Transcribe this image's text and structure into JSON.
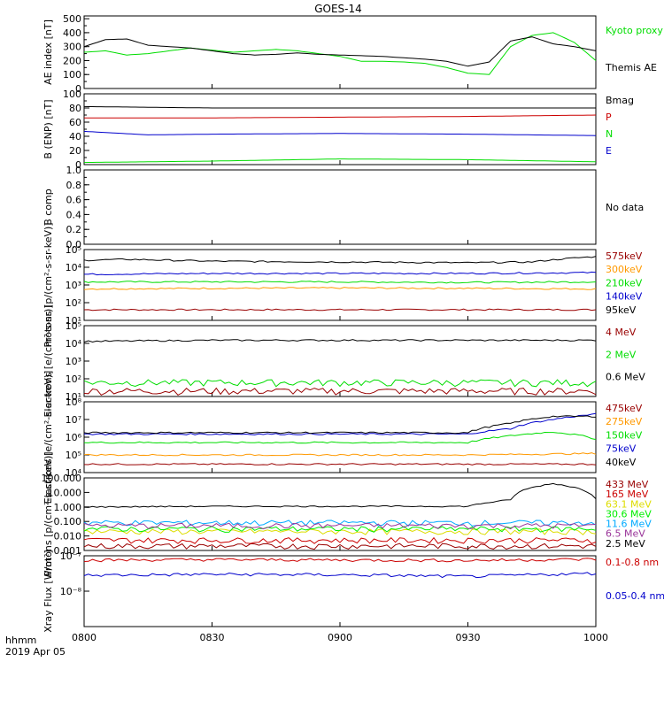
{
  "title": "GOES-14",
  "time_label": "hhmm",
  "date_label": "2019 Apr 05",
  "colors": {
    "black": "#000000",
    "green": "#00dd00",
    "red": "#cc0000",
    "blue": "#0000cc",
    "orange": "#ff9900",
    "darkred": "#990000",
    "yellow": "#dddd00",
    "cyan": "#00aaff",
    "purple": "#993399",
    "brightgreen": "#00ee00"
  },
  "x_axis": {
    "range": [
      "0800",
      "1000"
    ],
    "ticks": [
      "0800",
      "0830",
      "0900",
      "0930",
      "1000"
    ]
  },
  "chart_data": [
    {
      "id": "ae",
      "type": "line",
      "ylabel": "AE index [nT]",
      "ylim": [
        0,
        520
      ],
      "yticks": [
        "0",
        "100",
        "200",
        "300",
        "400",
        "500"
      ],
      "series": [
        {
          "name": "Kyoto proxy AE",
          "color": "#00dd00",
          "x": [
            "0800",
            "0805",
            "0810",
            "0815",
            "0820",
            "0825",
            "0830",
            "0835",
            "0840",
            "0845",
            "0850",
            "0855",
            "0900",
            "0905",
            "0910",
            "0915",
            "0920",
            "0925",
            "0930",
            "0935",
            "0940",
            "0945",
            "0950",
            "0955",
            "1000"
          ],
          "y": [
            260,
            270,
            240,
            250,
            270,
            290,
            275,
            260,
            270,
            280,
            270,
            250,
            230,
            195,
            195,
            190,
            180,
            150,
            110,
            100,
            300,
            380,
            400,
            330,
            200
          ]
        },
        {
          "name": "Themis AE",
          "color": "#000000",
          "x": [
            "0800",
            "0805",
            "0810",
            "0815",
            "0820",
            "0825",
            "0830",
            "0835",
            "0840",
            "0845",
            "0850",
            "0855",
            "0900",
            "0905",
            "0910",
            "0915",
            "0920",
            "0925",
            "0930",
            "0935",
            "0940",
            "0945",
            "0950",
            "0955",
            "1000"
          ],
          "y": [
            300,
            350,
            355,
            310,
            300,
            290,
            270,
            250,
            240,
            245,
            255,
            245,
            240,
            235,
            230,
            220,
            210,
            195,
            160,
            190,
            340,
            370,
            320,
            300,
            270
          ]
        }
      ]
    },
    {
      "id": "b_enp",
      "type": "line",
      "ylabel": "B (ENP) [nT]",
      "ylim": [
        0,
        100
      ],
      "yticks": [
        "0",
        "20",
        "40",
        "60",
        "80",
        "100"
      ],
      "series": [
        {
          "name": "Bmag",
          "color": "#000000",
          "x": [
            "0800",
            "0830",
            "0900",
            "0930",
            "1000"
          ],
          "y": [
            82,
            80,
            80,
            80,
            80
          ]
        },
        {
          "name": "P",
          "color": "#cc0000",
          "x": [
            "0800",
            "0830",
            "0900",
            "0930",
            "1000"
          ],
          "y": [
            66,
            66,
            67,
            68,
            70
          ]
        },
        {
          "name": "N",
          "color": "#00dd00",
          "x": [
            "0800",
            "0830",
            "0900",
            "0930",
            "1000"
          ],
          "y": [
            3,
            5,
            8,
            7,
            4
          ]
        },
        {
          "name": "E",
          "color": "#0000cc",
          "x": [
            "0800",
            "0815",
            "0830",
            "0900",
            "0930",
            "1000"
          ],
          "y": [
            47,
            42,
            43,
            44,
            43,
            41
          ]
        }
      ]
    },
    {
      "id": "b_comp",
      "type": "line",
      "ylabel": "B comp",
      "ylim": [
        0,
        1
      ],
      "yticks": [
        "0.0",
        "0.2",
        "0.4",
        "0.6",
        "0.8",
        "1.0"
      ],
      "note": "No data",
      "series": []
    },
    {
      "id": "protons_low",
      "type": "line",
      "log": true,
      "ylabel": "Protons [p/(cm²-s-sr-keV)]",
      "ylim": [
        10,
        100000
      ],
      "yticks": [
        "10¹",
        "10²",
        "10³",
        "10⁴",
        "10⁵"
      ],
      "series": [
        {
          "name": "575keV",
          "color": "#990000",
          "x": [
            "0800",
            "0830",
            "0900",
            "0930",
            "1000"
          ],
          "y": [
            40,
            40,
            40,
            40,
            40
          ]
        },
        {
          "name": "300keV",
          "color": "#ff9900",
          "x": [
            "0800",
            "0830",
            "0900",
            "0930",
            "1000"
          ],
          "y": [
            600,
            650,
            680,
            650,
            600
          ]
        },
        {
          "name": "210keV",
          "color": "#00dd00",
          "x": [
            "0800",
            "0830",
            "0900",
            "0930",
            "1000"
          ],
          "y": [
            1500,
            1500,
            1500,
            1400,
            1500
          ]
        },
        {
          "name": "140keV",
          "color": "#0000cc",
          "x": [
            "0800",
            "0830",
            "0900",
            "0930",
            "1000"
          ],
          "y": [
            4000,
            4500,
            4500,
            4500,
            5000
          ]
        },
        {
          "name": "95keV",
          "color": "#000000",
          "x": [
            "0800",
            "0810",
            "0830",
            "0900",
            "0930",
            "0945",
            "1000"
          ],
          "y": [
            25000,
            28000,
            22000,
            20000,
            18000,
            20000,
            40000
          ]
        }
      ]
    },
    {
      "id": "electrons_mev",
      "type": "line",
      "log": true,
      "ylabel": "Electrons [e/(cm²-s-sr)]",
      "ylim": [
        10,
        100000
      ],
      "yticks": [
        "10¹",
        "10²",
        "10³",
        "10⁴",
        "10⁵"
      ],
      "series": [
        {
          "name": "4 MeV",
          "color": "#990000",
          "x": [
            "0800",
            "0830",
            "0900",
            "0930",
            "1000"
          ],
          "y": [
            20,
            20,
            20,
            20,
            20
          ]
        },
        {
          "name": "2 MeV",
          "color": "#00dd00",
          "x": [
            "0800",
            "0830",
            "0900",
            "0930",
            "1000"
          ],
          "y": [
            60,
            60,
            60,
            60,
            60
          ]
        },
        {
          "name": "0.6 MeV",
          "color": "#000000",
          "x": [
            "0800",
            "0830",
            "0900",
            "0930",
            "1000"
          ],
          "y": [
            13000,
            15000,
            15000,
            15000,
            15000
          ]
        }
      ]
    },
    {
      "id": "electrons_kev",
      "type": "line",
      "log": true,
      "ylabel": "Electrons [e/(cm²-s-sr-keV)]",
      "ylim": [
        10000,
        100000000
      ],
      "yticks": [
        "10⁴",
        "10⁵",
        "10⁶",
        "10⁷",
        "10⁸"
      ],
      "series": [
        {
          "name": "475keV",
          "color": "#990000",
          "x": [
            "0800",
            "0830",
            "0900",
            "0930",
            "1000"
          ],
          "y": [
            30000,
            30000,
            30000,
            30000,
            30000
          ]
        },
        {
          "name": "275keV",
          "color": "#ff9900",
          "x": [
            "0800",
            "0830",
            "0900",
            "0930",
            "1000"
          ],
          "y": [
            100000,
            100000,
            100000,
            100000,
            120000
          ]
        },
        {
          "name": "150keV",
          "color": "#00dd00",
          "x": [
            "0800",
            "0830",
            "0900",
            "0930",
            "0940",
            "0950",
            "1000"
          ],
          "y": [
            500000,
            500000,
            500000,
            500000,
            1200000,
            2000000,
            800000
          ]
        },
        {
          "name": "75keV",
          "color": "#0000cc",
          "x": [
            "0800",
            "0830",
            "0900",
            "0930",
            "0940",
            "0950",
            "1000"
          ],
          "y": [
            1500000,
            1500000,
            1500000,
            1500000,
            3000000,
            10000000,
            20000000
          ]
        },
        {
          "name": "40keV",
          "color": "#000000",
          "x": [
            "0800",
            "0830",
            "0900",
            "0930",
            "0940",
            "0950",
            "1000"
          ],
          "y": [
            1800000,
            1800000,
            1800000,
            1800000,
            6000000,
            15000000,
            15000000
          ]
        }
      ]
    },
    {
      "id": "protons_high",
      "type": "line",
      "log": true,
      "ylabel": "Protons [p/(cm²-s-sr-keV)]",
      "ylim": [
        0.001,
        100
      ],
      "yticks": [
        "0.001",
        "0.010",
        "0.100",
        "1.000",
        "10.000",
        "100.000"
      ],
      "series": [
        {
          "name": "433 MeV",
          "color": "#990000",
          "x": [
            "0800",
            "0830",
            "0900",
            "0930",
            "1000"
          ],
          "y": [
            0.002,
            0.002,
            0.002,
            0.002,
            0.002
          ]
        },
        {
          "name": "165 MeV",
          "color": "#cc0000",
          "x": [
            "0800",
            "0830",
            "0900",
            "0930",
            "1000"
          ],
          "y": [
            0.005,
            0.005,
            0.005,
            0.005,
            0.005
          ]
        },
        {
          "name": "63.1 MeV",
          "color": "#dddd00",
          "x": [
            "0800",
            "0830",
            "0900",
            "0930",
            "1000"
          ],
          "y": [
            0.02,
            0.02,
            0.02,
            0.02,
            0.02
          ]
        },
        {
          "name": "30.6 MeV",
          "color": "#00ee00",
          "x": [
            "0800",
            "0830",
            "0900",
            "0930",
            "1000"
          ],
          "y": [
            0.03,
            0.03,
            0.03,
            0.03,
            0.03
          ]
        },
        {
          "name": "11.6 MeV",
          "color": "#00aaff",
          "x": [
            "0800",
            "0830",
            "0900",
            "0930",
            "1000"
          ],
          "y": [
            0.08,
            0.08,
            0.08,
            0.08,
            0.08
          ]
        },
        {
          "name": "6.5 MeV",
          "color": "#993399",
          "x": [
            "0800",
            "0830",
            "0900",
            "0930",
            "1000"
          ],
          "y": [
            0.05,
            0.05,
            0.05,
            0.05,
            0.05
          ]
        },
        {
          "name": "2.5 MeV",
          "color": "#000000",
          "x": [
            "0800",
            "0830",
            "0900",
            "0930",
            "0940",
            "0950",
            "1000"
          ],
          "y": [
            1,
            1.1,
            1.1,
            1.1,
            3,
            40,
            4
          ]
        }
      ]
    },
    {
      "id": "xray",
      "type": "line",
      "log": true,
      "ylabel": "Xray Flux [W/m²]",
      "ylim": [
        1e-09,
        1e-07
      ],
      "yticks": [
        "10⁻⁸",
        "10⁻⁷"
      ],
      "series": [
        {
          "name": "0.1-0.8 nm",
          "color": "#cc0000",
          "x": [
            "0800",
            "0830",
            "0900",
            "0930",
            "1000"
          ],
          "y": [
            7.5e-08,
            7.8e-08,
            7.6e-08,
            7.4e-08,
            8e-08
          ]
        },
        {
          "name": "0.05-0.4 nm",
          "color": "#0000cc",
          "x": [
            "0800",
            "0830",
            "0900",
            "0930",
            "1000"
          ],
          "y": [
            2.8e-08,
            3e-08,
            2.9e-08,
            2.6e-08,
            3.2e-08
          ]
        }
      ]
    }
  ]
}
